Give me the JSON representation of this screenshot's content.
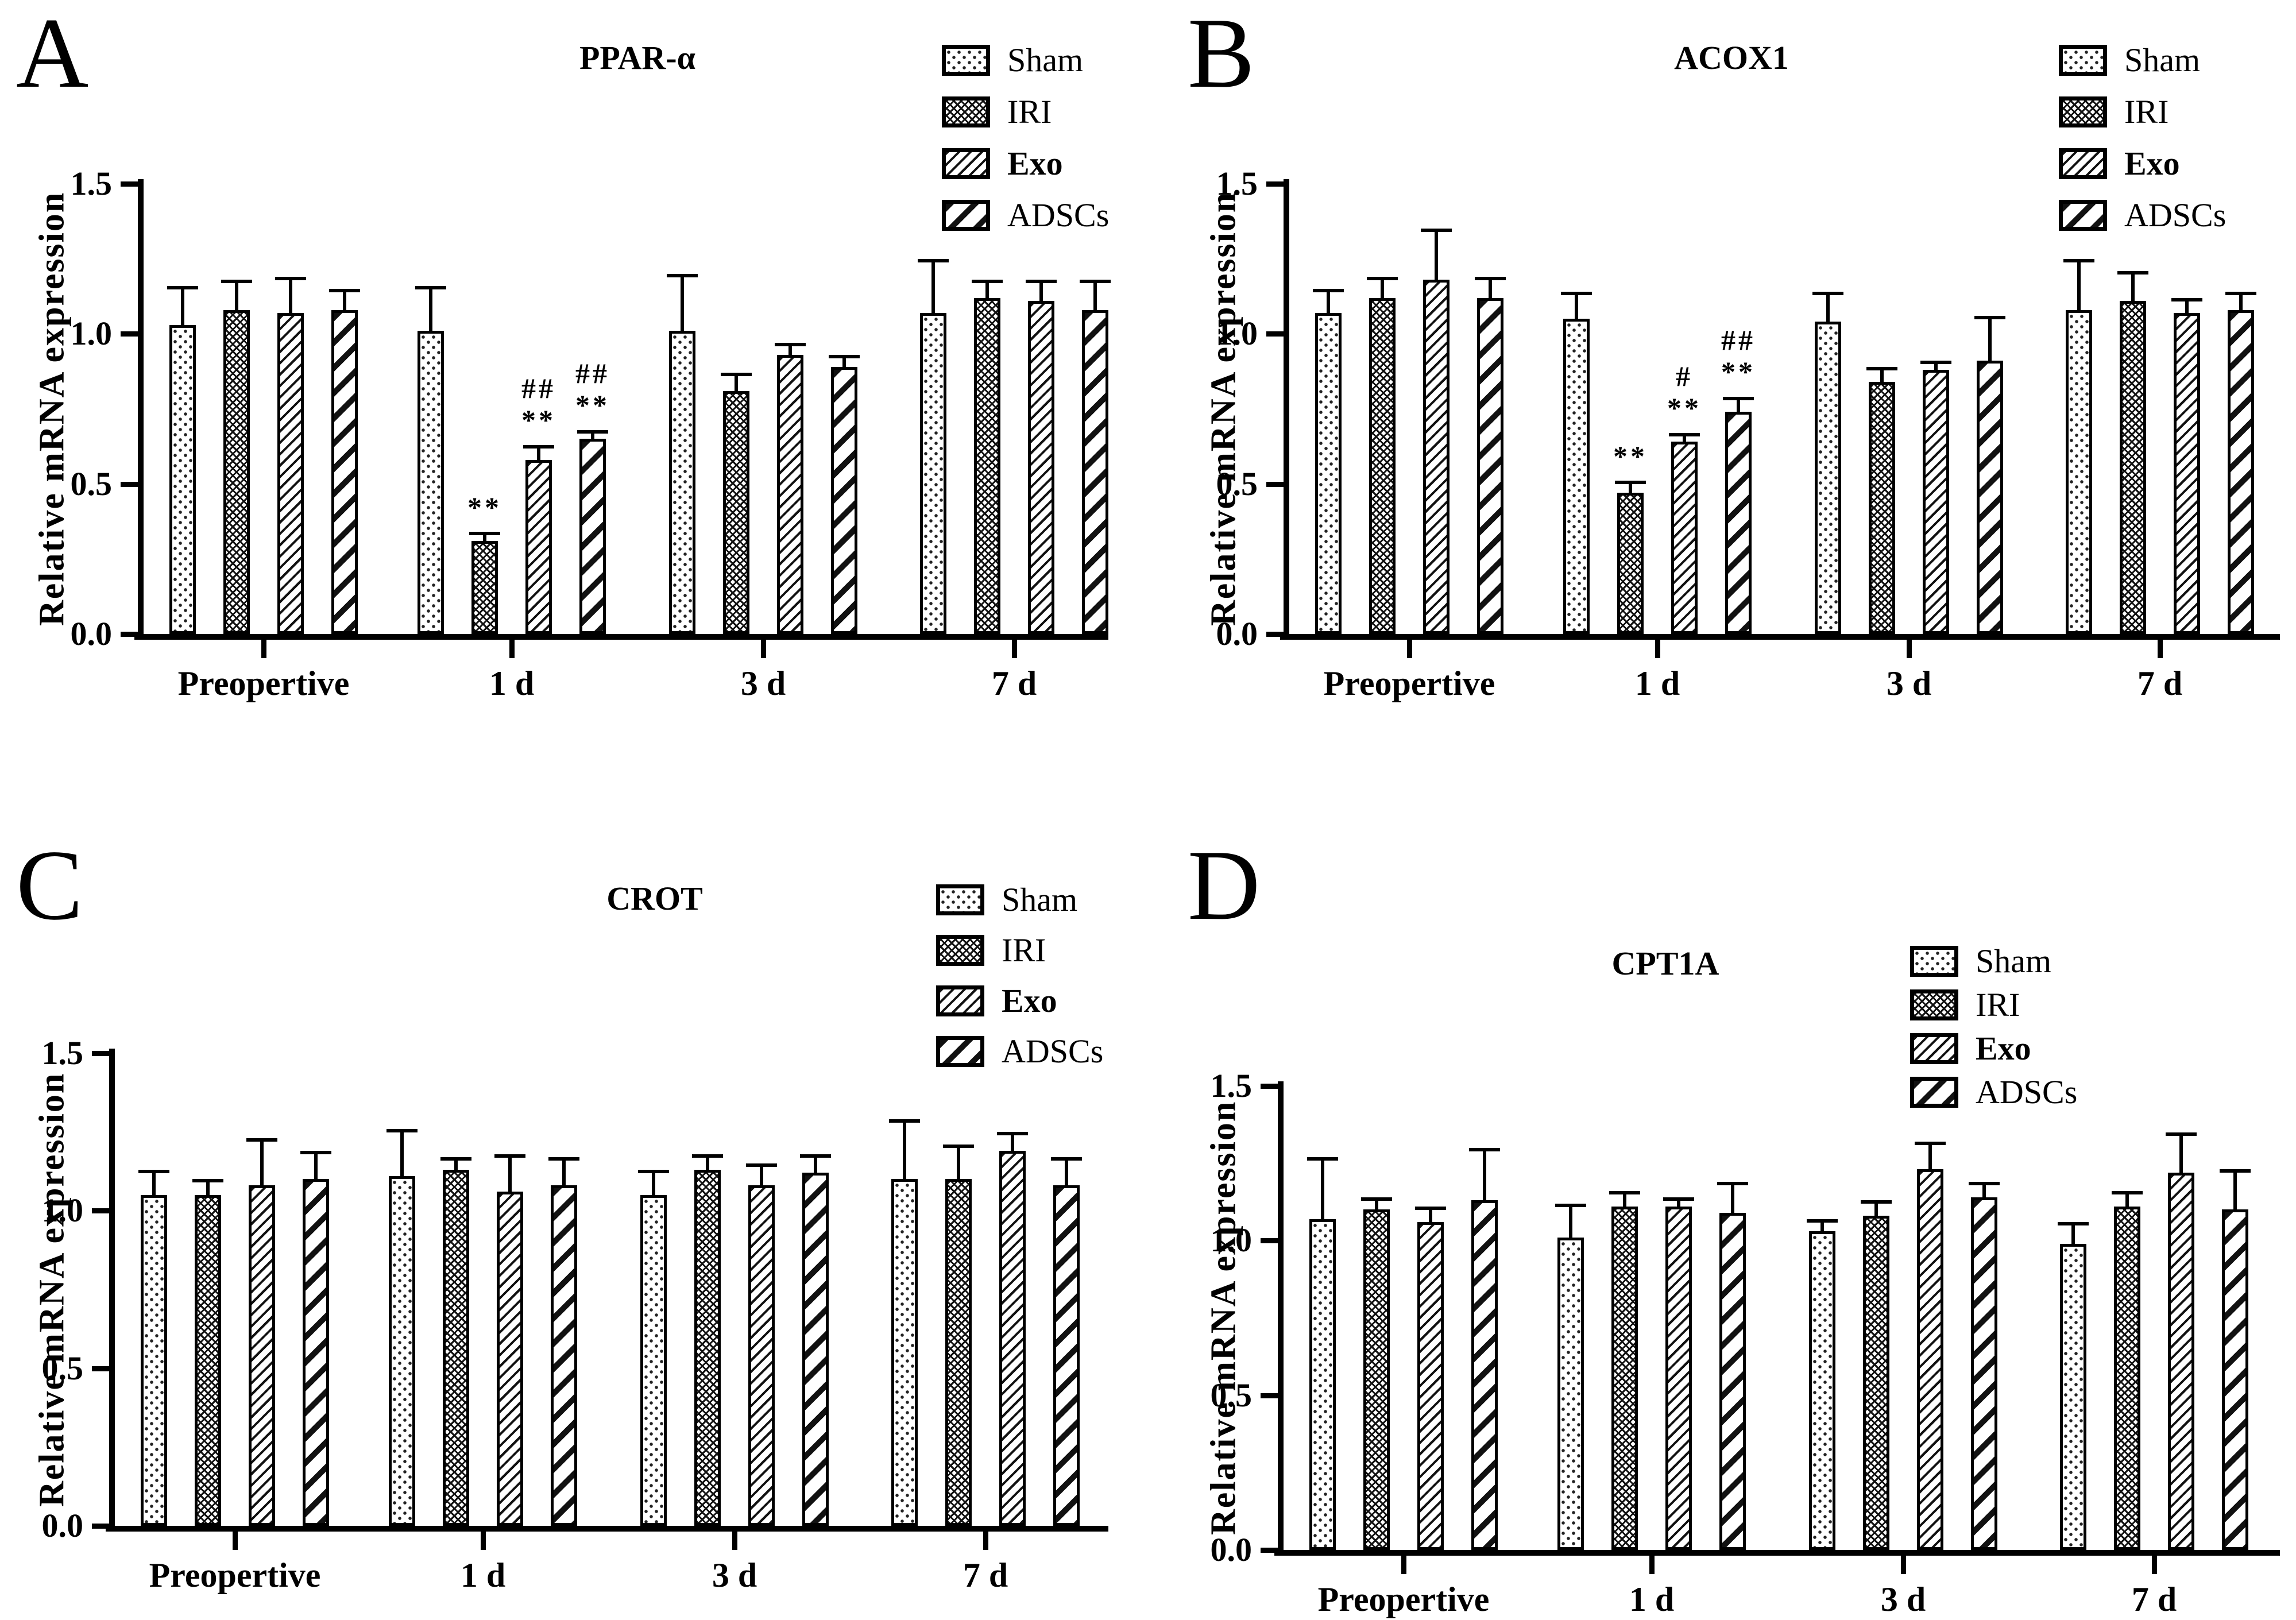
{
  "figure": {
    "background": "#ffffff",
    "ink_color": "#000000",
    "y_axis_label": "Relative mRNA expression",
    "y_ticks": [
      {
        "value": 1.5,
        "label": "1.5"
      },
      {
        "value": 1.0,
        "label": "1.0"
      },
      {
        "value": 0.5,
        "label": "0.5"
      },
      {
        "value": 0.0,
        "label": "0.0"
      }
    ],
    "x_categories": [
      "Preopertive",
      "1 d",
      "3 d",
      "7 d"
    ],
    "ylim": [
      0,
      1.5
    ],
    "legend": [
      {
        "label": "Sham",
        "pattern": "dotted",
        "bold": false
      },
      {
        "label": "IRI",
        "pattern": "fine-crosshatch",
        "bold": false
      },
      {
        "label": "Exo",
        "pattern": "thin-diagonal",
        "bold": true
      },
      {
        "label": "ADSCs",
        "pattern": "bold-diagonal",
        "bold": false
      }
    ]
  },
  "chart_data": [
    {
      "panel": "A",
      "title": "PPAR-α",
      "type": "bar",
      "xlabel": "",
      "ylabel": "Relative mRNA expression",
      "ylim": [
        0,
        1.5
      ],
      "grid": false,
      "legend_position": "top-right",
      "categories": [
        "Preopertive",
        "1 d",
        "3 d",
        "7 d"
      ],
      "series": [
        {
          "name": "Sham",
          "pattern": "dotted",
          "values": [
            1.03,
            1.01,
            1.01,
            1.07
          ],
          "errors": [
            0.13,
            0.15,
            0.19,
            0.18
          ]
        },
        {
          "name": "IRI",
          "pattern": "fine-crosshatch",
          "values": [
            1.08,
            0.31,
            0.81,
            1.12
          ],
          "errors": [
            0.1,
            0.03,
            0.06,
            0.06
          ]
        },
        {
          "name": "Exo",
          "pattern": "thin-diagonal",
          "values": [
            1.07,
            0.58,
            0.93,
            1.11
          ],
          "errors": [
            0.12,
            0.05,
            0.04,
            0.07
          ]
        },
        {
          "name": "ADSCs",
          "pattern": "bold-diagonal",
          "values": [
            1.08,
            0.65,
            0.89,
            1.08
          ],
          "errors": [
            0.07,
            0.03,
            0.04,
            0.1
          ]
        }
      ],
      "annotations": [
        {
          "category": "1 d",
          "series": "IRI",
          "lines": [
            "**"
          ]
        },
        {
          "category": "1 d",
          "series": "Exo",
          "lines": [
            "##",
            "**"
          ]
        },
        {
          "category": "1 d",
          "series": "ADSCs",
          "lines": [
            "##",
            "**"
          ]
        }
      ]
    },
    {
      "panel": "B",
      "title": "ACOX1",
      "type": "bar",
      "xlabel": "",
      "ylabel": "Relative mRNA expression",
      "ylim": [
        0,
        1.5
      ],
      "grid": false,
      "legend_position": "top-right",
      "categories": [
        "Preopertive",
        "1 d",
        "3 d",
        "7 d"
      ],
      "series": [
        {
          "name": "Sham",
          "pattern": "dotted",
          "values": [
            1.07,
            1.05,
            1.04,
            1.08
          ],
          "errors": [
            0.08,
            0.09,
            0.1,
            0.17
          ]
        },
        {
          "name": "IRI",
          "pattern": "fine-crosshatch",
          "values": [
            1.12,
            0.47,
            0.84,
            1.11
          ],
          "errors": [
            0.07,
            0.04,
            0.05,
            0.1
          ]
        },
        {
          "name": "Exo",
          "pattern": "thin-diagonal",
          "values": [
            1.18,
            0.64,
            0.88,
            1.07
          ],
          "errors": [
            0.17,
            0.03,
            0.03,
            0.05
          ]
        },
        {
          "name": "ADSCs",
          "pattern": "bold-diagonal",
          "values": [
            1.12,
            0.74,
            0.91,
            1.08
          ],
          "errors": [
            0.07,
            0.05,
            0.15,
            0.06
          ]
        }
      ],
      "annotations": [
        {
          "category": "1 d",
          "series": "IRI",
          "lines": [
            "**"
          ]
        },
        {
          "category": "1 d",
          "series": "Exo",
          "lines": [
            "#",
            "**"
          ]
        },
        {
          "category": "1 d",
          "series": "ADSCs",
          "lines": [
            "##",
            "**"
          ]
        }
      ]
    },
    {
      "panel": "C",
      "title": "CROT",
      "type": "bar",
      "xlabel": "",
      "ylabel": "Relative mRNA expression",
      "ylim": [
        0,
        1.5
      ],
      "grid": false,
      "legend_position": "top-right",
      "categories": [
        "Preopertive",
        "1 d",
        "3 d",
        "7 d"
      ],
      "series": [
        {
          "name": "Sham",
          "pattern": "dotted",
          "values": [
            1.05,
            1.11,
            1.05,
            1.1
          ],
          "errors": [
            0.08,
            0.15,
            0.08,
            0.19
          ]
        },
        {
          "name": "IRI",
          "pattern": "fine-crosshatch",
          "values": [
            1.05,
            1.13,
            1.13,
            1.1
          ],
          "errors": [
            0.05,
            0.04,
            0.05,
            0.11
          ]
        },
        {
          "name": "Exo",
          "pattern": "thin-diagonal",
          "values": [
            1.08,
            1.06,
            1.08,
            1.19
          ],
          "errors": [
            0.15,
            0.12,
            0.07,
            0.06
          ]
        },
        {
          "name": "ADSCs",
          "pattern": "bold-diagonal",
          "values": [
            1.1,
            1.08,
            1.12,
            1.08
          ],
          "errors": [
            0.09,
            0.09,
            0.06,
            0.09
          ]
        }
      ],
      "annotations": []
    },
    {
      "panel": "D",
      "title": "CPT1A",
      "type": "bar",
      "xlabel": "",
      "ylabel": "Relative mRNA expression",
      "ylim": [
        0,
        1.5
      ],
      "grid": false,
      "legend_position": "top-right",
      "categories": [
        "Preopertive",
        "1 d",
        "3 d",
        "7 d"
      ],
      "series": [
        {
          "name": "Sham",
          "pattern": "dotted",
          "values": [
            1.07,
            1.01,
            1.03,
            0.99
          ],
          "errors": [
            0.2,
            0.11,
            0.04,
            0.07
          ]
        },
        {
          "name": "IRI",
          "pattern": "fine-crosshatch",
          "values": [
            1.1,
            1.11,
            1.08,
            1.11
          ],
          "errors": [
            0.04,
            0.05,
            0.05,
            0.05
          ]
        },
        {
          "name": "Exo",
          "pattern": "thin-diagonal",
          "values": [
            1.06,
            1.11,
            1.23,
            1.22
          ],
          "errors": [
            0.05,
            0.03,
            0.09,
            0.13
          ]
        },
        {
          "name": "ADSCs",
          "pattern": "bold-diagonal",
          "values": [
            1.13,
            1.09,
            1.14,
            1.1
          ],
          "errors": [
            0.17,
            0.1,
            0.05,
            0.13
          ]
        }
      ],
      "annotations": []
    }
  ]
}
